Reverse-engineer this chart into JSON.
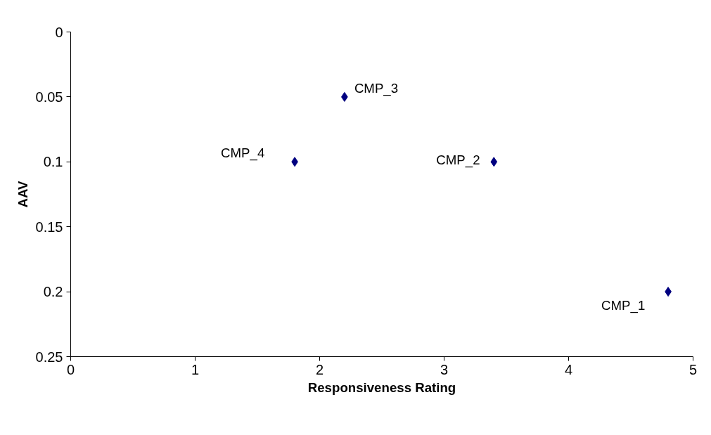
{
  "chart_data": {
    "type": "scatter",
    "xlabel": "Responsiveness Rating",
    "ylabel": "AAV",
    "x": [
      4.8,
      3.4,
      2.2,
      1.8
    ],
    "series": [
      {
        "color": "#000080",
        "values": [
          0.2,
          0.1,
          0.05,
          0.1
        ]
      }
    ],
    "marker": "diamond",
    "xlim": [
      0,
      5
    ],
    "xticks": [
      0,
      1,
      2,
      3,
      4,
      5
    ],
    "ylim": [
      0.25,
      0
    ],
    "yticks": [
      0,
      0.05,
      0.1,
      0.15,
      0.2,
      0.25
    ],
    "grid": false,
    "annotations": [
      {
        "text": "CMP_1",
        "x": 4.8,
        "y": 0.2
      },
      {
        "text": "CMP_2",
        "x": 3.4,
        "y": 0.1
      },
      {
        "text": "CMP_3",
        "x": 2.2,
        "y": 0.05
      },
      {
        "text": "CMP_4",
        "x": 1.8,
        "y": 0.1
      }
    ]
  }
}
